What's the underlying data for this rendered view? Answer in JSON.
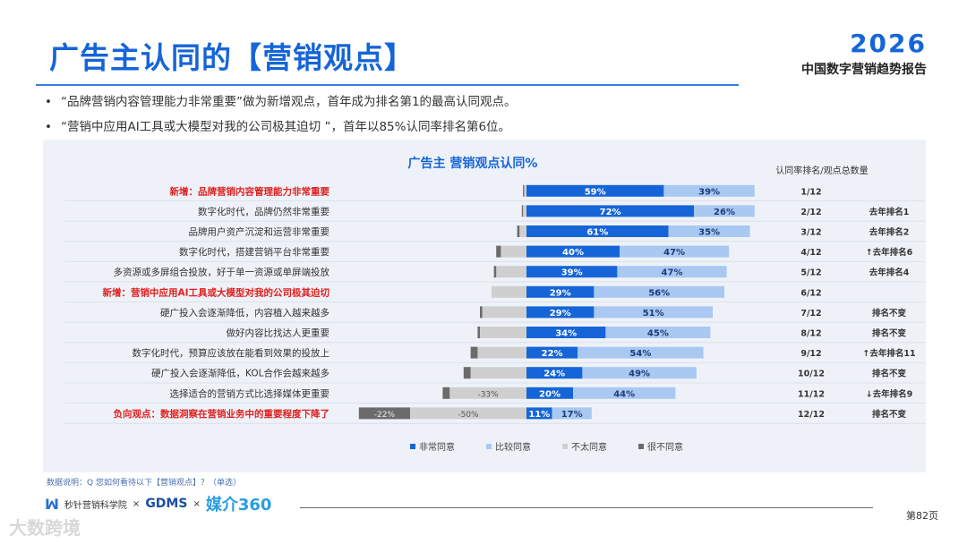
{
  "header": {
    "title": "广告主认同的【营销观点】",
    "brand_year": "2026",
    "brand_subtitle": "中国数字营销趋势报告"
  },
  "bullets": [
    "“品牌营销内容管理能力非常重要”做为新增观点，首年成为排名第1的最高认同观点。",
    "“营销中应用AI工具或大模型对我的公司极其迫切 ”，首年以85%认同率排名第6位。"
  ],
  "chart_data": {
    "type": "bar",
    "title": "广告主 营销观点认同%",
    "rank_header": "认同率排名/观点总数量",
    "legend": [
      "非常同意",
      "比较同意",
      "不太同意",
      "很不同意"
    ],
    "colors": {
      "strong_agree": "#1565d8",
      "agree": "#a9c8f2",
      "disagree": "#cfcfcf",
      "strong_disagree": "#6b6b6b",
      "highlight_text": "#e0201f"
    },
    "rows": [
      {
        "label": "新增：品牌营销内容管理能力非常重要",
        "highlight": true,
        "strong_agree": 59,
        "agree": 39,
        "disagree": 1,
        "strong_disagree": 0.5,
        "rank": "1/12",
        "change": ""
      },
      {
        "label": "数字化时代，品牌仍然非常重要",
        "highlight": false,
        "strong_agree": 72,
        "agree": 26,
        "disagree": 1.5,
        "strong_disagree": 0.5,
        "rank": "2/12",
        "change": "去年排名1"
      },
      {
        "label": "品牌用户资产沉淀和运营非常重要",
        "highlight": false,
        "strong_agree": 61,
        "agree": 35,
        "disagree": 3,
        "strong_disagree": 1,
        "rank": "3/12",
        "change": "去年排名2"
      },
      {
        "label": "数字化时代，搭建营销平台非常重要",
        "highlight": false,
        "strong_agree": 40,
        "agree": 47,
        "disagree": 11,
        "strong_disagree": 2,
        "rank": "4/12",
        "change": "↑去年排名6"
      },
      {
        "label": "多资源或多屏组合投放，好于单一资源或单屏端投放",
        "highlight": false,
        "strong_agree": 39,
        "agree": 47,
        "disagree": 13,
        "strong_disagree": 1,
        "rank": "5/12",
        "change": "去年排名4"
      },
      {
        "label": "新增：营销中应用AI工具或大模型对我的公司极其迫切",
        "highlight": true,
        "strong_agree": 29,
        "agree": 56,
        "disagree": 15,
        "strong_disagree": 0,
        "rank": "6/12",
        "change": ""
      },
      {
        "label": "硬广投入会逐渐降低，内容植入越来越多",
        "highlight": false,
        "strong_agree": 29,
        "agree": 51,
        "disagree": 19,
        "strong_disagree": 1,
        "rank": "7/12",
        "change": "排名不变"
      },
      {
        "label": "做好内容比找达人更重要",
        "highlight": false,
        "strong_agree": 34,
        "agree": 45,
        "disagree": 20,
        "strong_disagree": 1,
        "rank": "8/12",
        "change": "排名不变"
      },
      {
        "label": "数字化时代，预算应该放在能看到效果的投放上",
        "highlight": false,
        "strong_agree": 22,
        "agree": 54,
        "disagree": 21,
        "strong_disagree": 3,
        "rank": "9/12",
        "change": "↑去年排名11"
      },
      {
        "label": "硬广投入会逐渐降低，KOL合作会越来越多",
        "highlight": false,
        "strong_agree": 24,
        "agree": 49,
        "disagree": 24,
        "strong_disagree": 3,
        "rank": "10/12",
        "change": "排名不变"
      },
      {
        "label": "选择适合的营销方式比选择媒体更重要",
        "highlight": false,
        "strong_agree": 20,
        "agree": 44,
        "disagree": 33,
        "strong_disagree": 3,
        "rank": "11/12",
        "change": "↓去年排名9"
      },
      {
        "label": "负向观点：数据洞察在营销业务中的重要程度下降了",
        "highlight": true,
        "strong_agree": 11,
        "agree": 17,
        "disagree": 50,
        "strong_disagree": 22,
        "rank": "12/12",
        "change": "排名不变"
      }
    ]
  },
  "footer": {
    "note": "数据说明：Q 您如何看待以下【营销观点】？（单选）",
    "logo1": "秒针营销科学院",
    "times1": "×",
    "logo2": "GDMS",
    "times2": "×",
    "logo3": "媒介360",
    "page": "第82页",
    "watermark": "大数跨境"
  }
}
